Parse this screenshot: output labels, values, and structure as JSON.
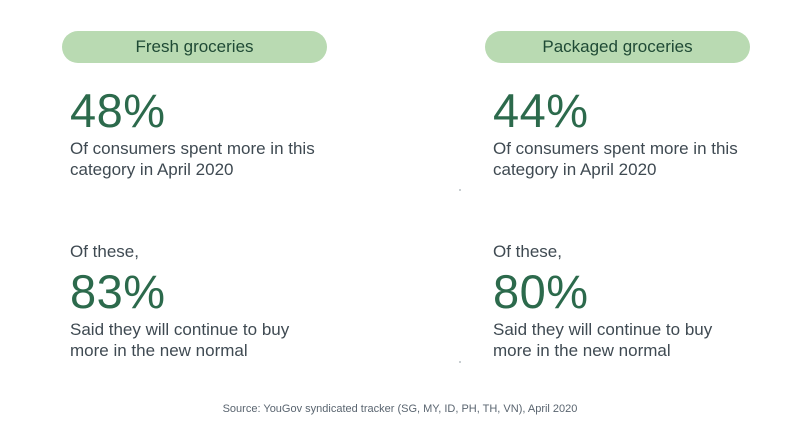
{
  "fresh": {
    "label": "Fresh groceries",
    "pct_spent": "48%",
    "desc_spent": "Of consumers spent more in this category in April 2020",
    "of_these": "Of these,",
    "pct_continue": "83%",
    "desc_continue": "Said they will continue to buy more in the new normal"
  },
  "packaged": {
    "label": "Packaged groceries",
    "pct_spent": "44%",
    "desc_spent": "Of consumers spent more in this category in April 2020",
    "of_these": "Of these,",
    "pct_continue": "80%",
    "desc_continue": "Said they will continue to buy more in the new normal"
  },
  "source": "Source: YouGov syndicated tracker (SG, MY, ID, PH, TH, VN), April 2020",
  "colors": {
    "pill": "#b9dab2",
    "accent": "#2c6a4c",
    "text": "#3f4a52"
  }
}
